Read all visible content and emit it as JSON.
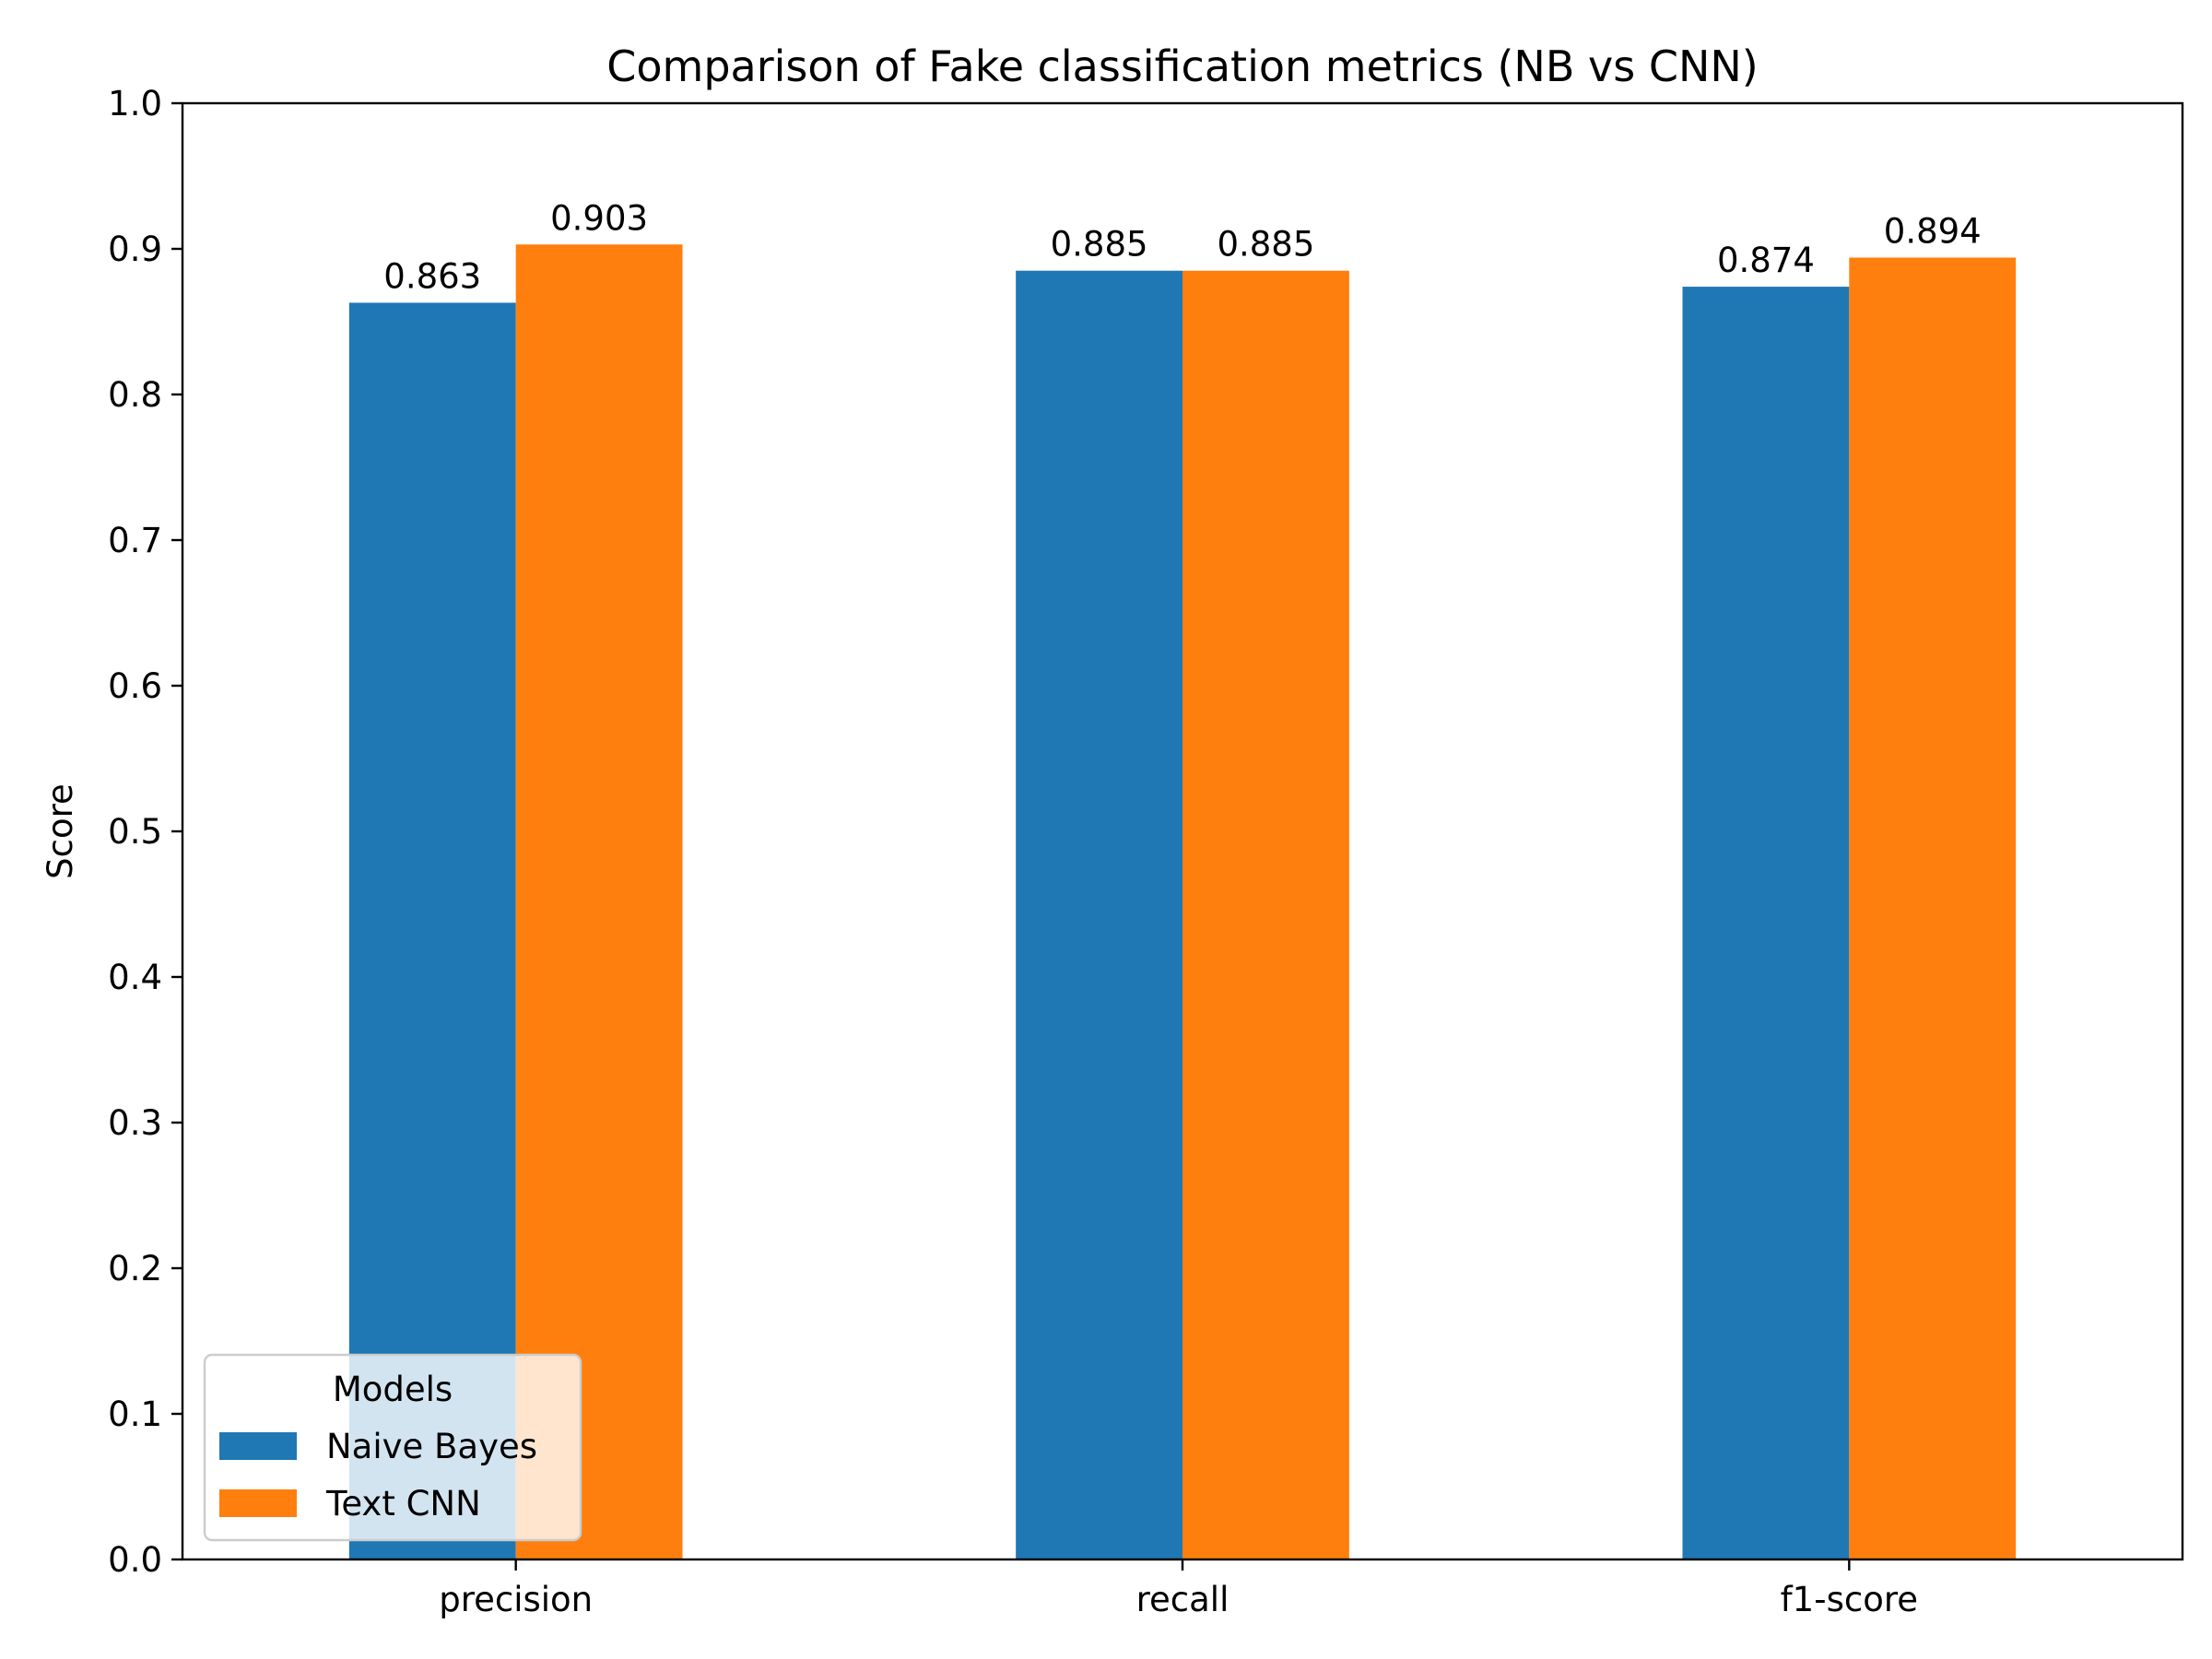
{
  "chart_data": {
    "type": "bar",
    "title": "Comparison of Fake classification metrics (NB vs CNN)",
    "xlabel": "",
    "ylabel": "Score",
    "categories": [
      "precision",
      "recall",
      "f1-score"
    ],
    "series": [
      {
        "name": "Naive Bayes",
        "values": [
          0.863,
          0.885,
          0.874
        ],
        "value_labels": [
          "0.863",
          "0.885",
          "0.874"
        ],
        "color": "#1f77b4"
      },
      {
        "name": "Text CNN",
        "values": [
          0.903,
          0.885,
          0.894
        ],
        "value_labels": [
          "0.903",
          "0.885",
          "0.894"
        ],
        "color": "#ff7f0e"
      }
    ],
    "ylim": [
      0,
      1
    ],
    "yticks": [
      0.0,
      0.1,
      0.2,
      0.3,
      0.4,
      0.5,
      0.6,
      0.7,
      0.8,
      0.9,
      1.0
    ],
    "ytick_labels": [
      "0.0",
      "0.1",
      "0.2",
      "0.3",
      "0.4",
      "0.5",
      "0.6",
      "0.7",
      "0.8",
      "0.9",
      "1.0"
    ],
    "grid": false,
    "legend": {
      "title": "Models",
      "placement": "lower-left"
    }
  }
}
